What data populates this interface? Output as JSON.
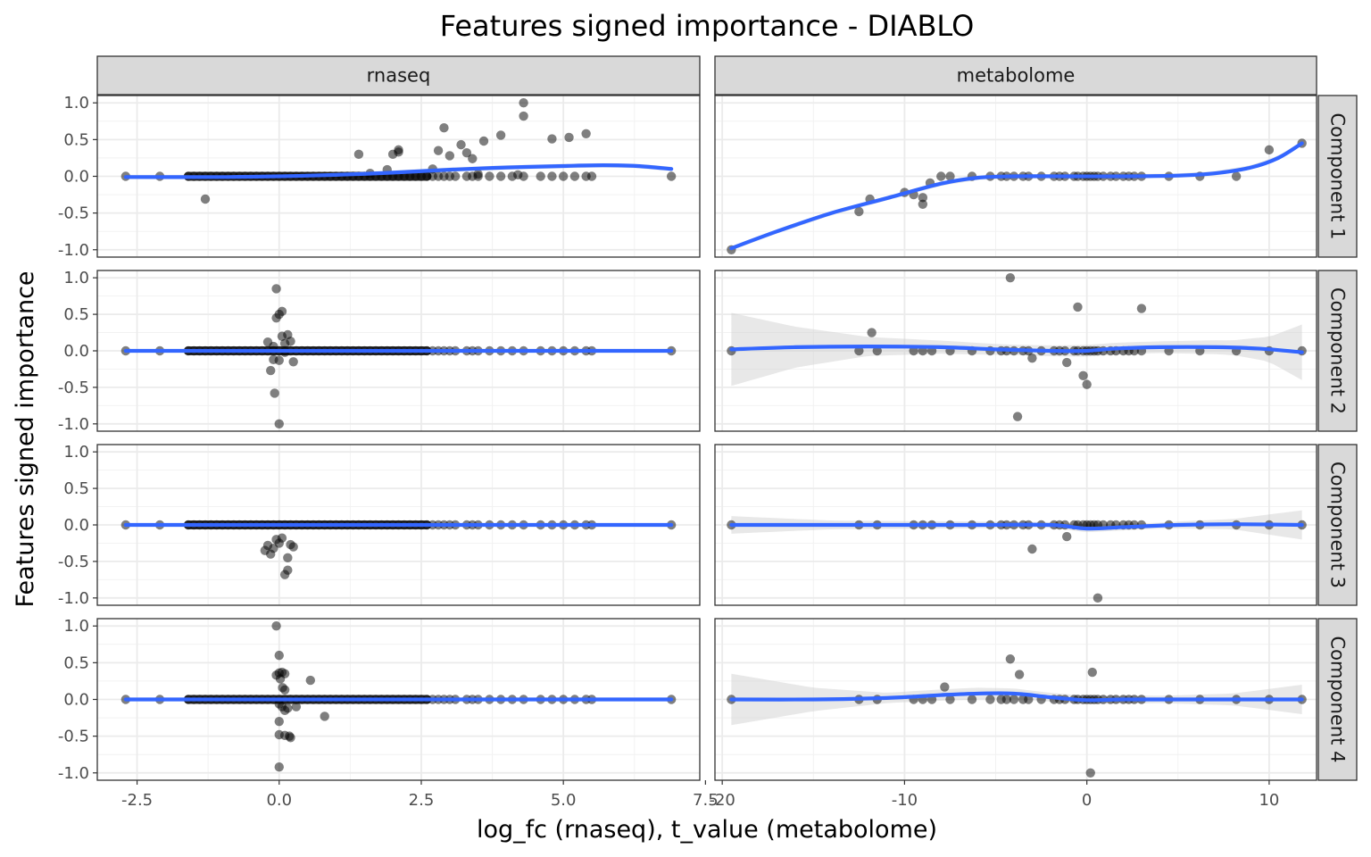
{
  "chart_data": {
    "type": "scatter",
    "title": "Features signed importance - DIABLO",
    "xlabel": "log_fc (rnaseq), t_value (metabolome)",
    "ylabel": "Features signed importance",
    "facet_columns": [
      "rnaseq",
      "metabolome"
    ],
    "facet_rows": [
      "Component 1",
      "Component 2",
      "Component 3",
      "Component 4"
    ],
    "grid": true,
    "ylim": [
      -1.1,
      1.1
    ],
    "y_ticks": [
      1.0,
      0.5,
      0.0,
      -0.5,
      -1.0
    ],
    "y_tick_labels": [
      "1.0",
      "0.5",
      "0.0",
      "-0.5",
      "-1.0"
    ],
    "point_color": "#000000",
    "smooth_color": "#3366FF",
    "ribbon_color": "#cccccc",
    "panels": {
      "rnaseq": {
        "xlim": [
          -3.2,
          7.4
        ],
        "x_ticks": [
          -2.5,
          0.0,
          2.5,
          5.0,
          7.5
        ],
        "x_tick_labels": [
          "-2.5",
          "0.0",
          "2.5",
          "5.0",
          "7.5"
        ],
        "baseline_points": [
          -2.7,
          -2.1,
          -1.6,
          -1.5,
          -1.4,
          -1.3,
          -1.2,
          -1.1,
          -1.0,
          -0.9,
          -0.8,
          -0.7,
          -0.6,
          -0.5,
          -0.4,
          -0.3,
          -0.2,
          -0.1,
          0.0,
          0.1,
          0.2,
          0.3,
          0.4,
          0.5,
          0.6,
          0.7,
          0.8,
          0.9,
          1.0,
          1.1,
          1.2,
          1.3,
          1.4,
          1.5,
          1.6,
          1.7,
          1.8,
          1.9,
          2.0,
          2.1,
          2.2,
          2.3,
          2.4,
          2.5,
          2.6,
          2.7,
          2.8,
          2.9,
          3.0,
          3.1,
          3.3,
          3.4,
          3.5,
          3.7,
          3.9,
          4.1,
          4.3,
          4.6,
          4.8,
          5.0,
          5.2,
          5.4,
          5.5,
          6.9
        ],
        "components": [
          {
            "points": [
              [
                -1.3,
                -0.31
              ],
              [
                1.4,
                0.3
              ],
              [
                1.6,
                0.04
              ],
              [
                1.9,
                0.09
              ],
              [
                2.0,
                0.3
              ],
              [
                2.1,
                0.33
              ],
              [
                2.1,
                0.36
              ],
              [
                2.7,
                0.1
              ],
              [
                2.8,
                0.35
              ],
              [
                2.9,
                0.66
              ],
              [
                3.0,
                0.28
              ],
              [
                3.2,
                0.43
              ],
              [
                3.3,
                0.32
              ],
              [
                3.4,
                0.24
              ],
              [
                3.6,
                0.48
              ],
              [
                3.9,
                0.56
              ],
              [
                4.3,
                1.0
              ],
              [
                4.3,
                0.82
              ],
              [
                4.8,
                0.51
              ],
              [
                5.1,
                0.53
              ],
              [
                5.4,
                0.58
              ],
              [
                3.5,
                0.03
              ],
              [
                4.2,
                0.02
              ]
            ],
            "smooth": [
              [
                -2.7,
                -0.01
              ],
              [
                -1.0,
                -0.01
              ],
              [
                0.0,
                0.0
              ],
              [
                1.0,
                0.02
              ],
              [
                2.0,
                0.05
              ],
              [
                3.0,
                0.09
              ],
              [
                4.0,
                0.12
              ],
              [
                5.0,
                0.14
              ],
              [
                5.7,
                0.15
              ],
              [
                6.3,
                0.14
              ],
              [
                6.9,
                0.1
              ]
            ],
            "band": 0.03
          },
          {
            "points": [
              [
                -0.2,
                0.12
              ],
              [
                -0.1,
                0.06
              ],
              [
                -0.05,
                0.85
              ],
              [
                -0.05,
                0.45
              ],
              [
                0.0,
                0.5
              ],
              [
                0.05,
                0.54
              ],
              [
                0.05,
                0.2
              ],
              [
                0.1,
                0.1
              ],
              [
                0.15,
                0.22
              ],
              [
                0.2,
                0.13
              ],
              [
                0.25,
                -0.15
              ],
              [
                -0.15,
                -0.27
              ],
              [
                -0.1,
                -0.12
              ],
              [
                -0.08,
                -0.58
              ],
              [
                0.0,
                -0.13
              ],
              [
                0.1,
                -0.02
              ],
              [
                0.0,
                -1.0
              ]
            ],
            "smooth": [
              [
                -2.7,
                0.0
              ],
              [
                0.0,
                0.0
              ],
              [
                3.0,
                0.0
              ],
              [
                6.9,
                0.0
              ]
            ],
            "band": 0.02
          },
          {
            "points": [
              [
                -0.25,
                -0.35
              ],
              [
                -0.2,
                -0.28
              ],
              [
                -0.15,
                -0.4
              ],
              [
                -0.1,
                -0.32
              ],
              [
                -0.05,
                -0.2
              ],
              [
                0.05,
                -0.18
              ],
              [
                0.1,
                -0.68
              ],
              [
                0.15,
                -0.62
              ],
              [
                0.2,
                -0.27
              ],
              [
                0.25,
                -0.3
              ],
              [
                0.15,
                -0.45
              ],
              [
                0.0,
                -0.25
              ]
            ],
            "smooth": [
              [
                -2.7,
                0.0
              ],
              [
                0.0,
                0.0
              ],
              [
                3.0,
                0.0
              ],
              [
                6.9,
                0.0
              ]
            ],
            "band": 0.02
          },
          {
            "points": [
              [
                -0.05,
                1.0
              ],
              [
                0.0,
                0.6
              ],
              [
                0.0,
                0.36
              ],
              [
                -0.05,
                0.33
              ],
              [
                0.05,
                0.37
              ],
              [
                0.1,
                0.35
              ],
              [
                0.02,
                0.28
              ],
              [
                0.06,
                0.16
              ],
              [
                0.1,
                0.13
              ],
              [
                0.55,
                0.26
              ],
              [
                0.0,
                -0.06
              ],
              [
                0.05,
                -0.1
              ],
              [
                0.1,
                -0.15
              ],
              [
                0.15,
                -0.12
              ],
              [
                0.3,
                -0.1
              ],
              [
                0.0,
                -0.3
              ],
              [
                0.0,
                -0.48
              ],
              [
                0.1,
                -0.49
              ],
              [
                0.18,
                -0.5
              ],
              [
                0.2,
                -0.52
              ],
              [
                0.8,
                -0.23
              ],
              [
                0.0,
                -0.92
              ]
            ],
            "smooth": [
              [
                -2.7,
                0.0
              ],
              [
                0.0,
                0.0
              ],
              [
                3.0,
                0.0
              ],
              [
                6.9,
                0.0
              ]
            ],
            "band": 0.02
          }
        ]
      },
      "metabolome": {
        "xlim": [
          -20.4,
          12.6
        ],
        "x_ticks": [
          -20,
          -10,
          0,
          10
        ],
        "x_tick_labels": [
          "-20",
          "-10",
          "0",
          "10"
        ],
        "baseline_points": [
          -19.5,
          -12.5,
          -11.5,
          -9.5,
          -9.0,
          -8.5,
          -7.5,
          -6.3,
          -5.3,
          -4.7,
          -4.4,
          -4.0,
          -3.5,
          -3.2,
          -2.5,
          -1.8,
          -1.5,
          -1.2,
          -0.7,
          -0.5,
          -0.2,
          0.0,
          0.2,
          0.4,
          0.6,
          0.9,
          1.3,
          1.6,
          2.0,
          2.3,
          2.6,
          3.0,
          4.5,
          6.2,
          8.2,
          10.0,
          11.8
        ],
        "components": [
          {
            "points": [
              [
                -19.5,
                -1.0
              ],
              [
                -12.5,
                -0.48
              ],
              [
                -11.9,
                -0.31
              ],
              [
                -10.0,
                -0.22
              ],
              [
                -9.5,
                -0.25
              ],
              [
                -9.0,
                -0.29
              ],
              [
                -9.0,
                -0.38
              ],
              [
                -8.6,
                -0.09
              ],
              [
                -8.0,
                0.0
              ],
              [
                10.0,
                0.36
              ],
              [
                11.8,
                0.45
              ]
            ],
            "baseline_range": [
              -8.0,
              8.2
            ],
            "smooth": [
              [
                -19.5,
                -0.98
              ],
              [
                -17.0,
                -0.75
              ],
              [
                -14.0,
                -0.5
              ],
              [
                -11.0,
                -0.3
              ],
              [
                -8.0,
                -0.1
              ],
              [
                -6.0,
                -0.02
              ],
              [
                -4.0,
                0.0
              ],
              [
                -1.0,
                0.0
              ],
              [
                2.0,
                0.0
              ],
              [
                5.0,
                0.01
              ],
              [
                7.0,
                0.04
              ],
              [
                9.0,
                0.12
              ],
              [
                10.5,
                0.25
              ],
              [
                11.8,
                0.45
              ]
            ],
            "band": 0.03
          },
          {
            "points": [
              [
                -11.8,
                0.25
              ],
              [
                -4.2,
                1.0
              ],
              [
                -0.5,
                0.6
              ],
              [
                3.0,
                0.58
              ],
              [
                -3.0,
                -0.1
              ],
              [
                -1.1,
                -0.16
              ],
              [
                -0.2,
                -0.34
              ],
              [
                0.0,
                -0.46
              ],
              [
                -3.8,
                -0.9
              ]
            ],
            "smooth": [
              [
                -19.5,
                0.02
              ],
              [
                -16.0,
                0.05
              ],
              [
                -12.0,
                0.06
              ],
              [
                -8.0,
                0.05
              ],
              [
                -5.0,
                0.02
              ],
              [
                -2.0,
                0.0
              ],
              [
                0.0,
                0.0
              ],
              [
                1.5,
                0.03
              ],
              [
                4.0,
                0.05
              ],
              [
                7.0,
                0.05
              ],
              [
                9.5,
                0.03
              ],
              [
                11.8,
                -0.02
              ]
            ],
            "band_profile": [
              [
                -19.5,
                0.5
              ],
              [
                -16.0,
                0.28
              ],
              [
                -12.0,
                0.13
              ],
              [
                -8.0,
                0.09
              ],
              [
                -4.0,
                0.07
              ],
              [
                0.0,
                0.08
              ],
              [
                4.0,
                0.08
              ],
              [
                8.0,
                0.1
              ],
              [
                10.0,
                0.17
              ],
              [
                11.8,
                0.38
              ]
            ]
          },
          {
            "points": [
              [
                -3.0,
                -0.33
              ],
              [
                -1.1,
                -0.16
              ],
              [
                0.6,
                -1.0
              ]
            ],
            "smooth": [
              [
                -19.5,
                0.0
              ],
              [
                -12.0,
                0.0
              ],
              [
                -6.0,
                0.0
              ],
              [
                -2.0,
                0.0
              ],
              [
                0.0,
                -0.05
              ],
              [
                2.0,
                -0.03
              ],
              [
                5.0,
                0.0
              ],
              [
                8.0,
                0.01
              ],
              [
                11.8,
                0.0
              ]
            ],
            "band_profile": [
              [
                -19.5,
                0.12
              ],
              [
                -14.0,
                0.06
              ],
              [
                -8.0,
                0.05
              ],
              [
                -2.0,
                0.04
              ],
              [
                0.0,
                0.05
              ],
              [
                4.0,
                0.04
              ],
              [
                8.0,
                0.07
              ],
              [
                11.8,
                0.2
              ]
            ]
          },
          {
            "points": [
              [
                -7.8,
                0.17
              ],
              [
                -4.2,
                0.55
              ],
              [
                -3.7,
                0.34
              ],
              [
                0.3,
                0.37
              ],
              [
                0.2,
                -1.0
              ]
            ],
            "smooth": [
              [
                -19.5,
                0.0
              ],
              [
                -15.0,
                0.0
              ],
              [
                -11.0,
                0.02
              ],
              [
                -8.0,
                0.06
              ],
              [
                -6.0,
                0.08
              ],
              [
                -4.0,
                0.08
              ],
              [
                -2.0,
                0.03
              ],
              [
                0.0,
                -0.01
              ],
              [
                2.0,
                0.0
              ],
              [
                5.0,
                0.0
              ],
              [
                8.0,
                0.0
              ],
              [
                11.8,
                0.0
              ]
            ],
            "band_profile": [
              [
                -19.5,
                0.35
              ],
              [
                -15.0,
                0.16
              ],
              [
                -11.0,
                0.07
              ],
              [
                -6.0,
                0.08
              ],
              [
                -2.0,
                0.06
              ],
              [
                0.0,
                0.06
              ],
              [
                4.0,
                0.05
              ],
              [
                8.0,
                0.08
              ],
              [
                11.8,
                0.2
              ]
            ]
          }
        ]
      }
    }
  }
}
